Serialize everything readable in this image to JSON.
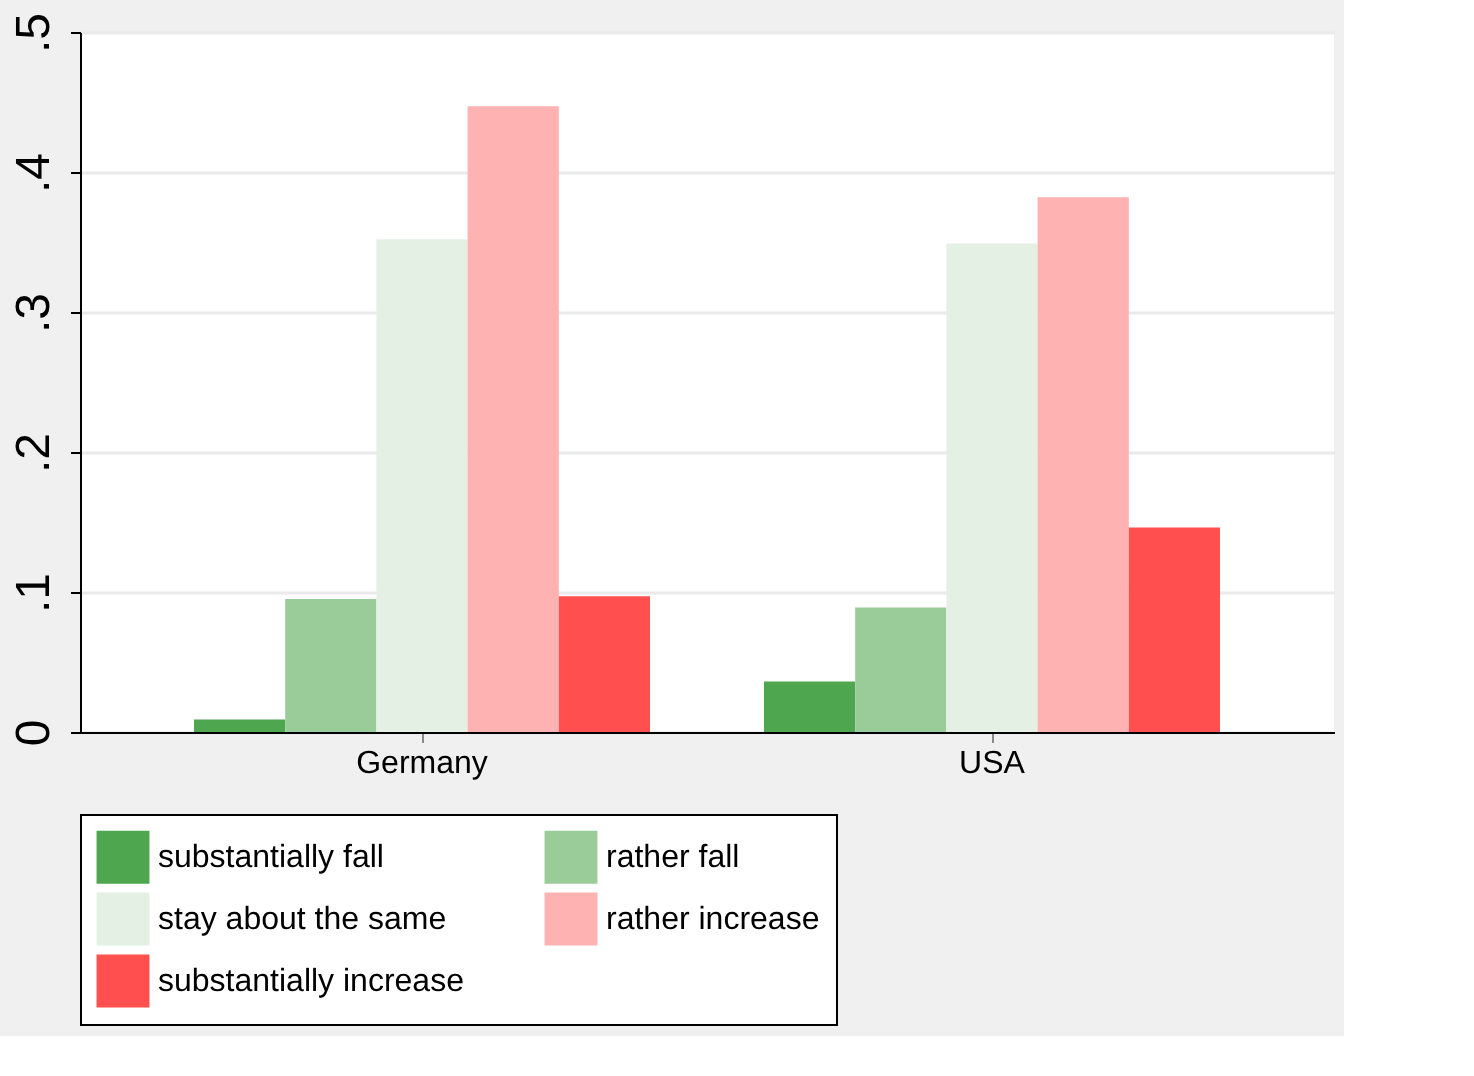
{
  "chart_data": {
    "type": "bar",
    "categories": [
      "Germany",
      "USA"
    ],
    "series": [
      {
        "name": "substantially fall",
        "color": "#4ea64e",
        "values": [
          0.009,
          0.036
        ]
      },
      {
        "name": "rather fall",
        "color": "#9acc99",
        "values": [
          0.095,
          0.089
        ]
      },
      {
        "name": "stay about the same",
        "color": "#e4f0e4",
        "values": [
          0.352,
          0.349
        ]
      },
      {
        "name": "rather increase",
        "color": "#feb2b2",
        "values": [
          0.447,
          0.382
        ]
      },
      {
        "name": "substantially increase",
        "color": "#ff4f4f",
        "values": [
          0.097,
          0.146
        ]
      }
    ],
    "ylim": [
      0,
      0.5
    ],
    "yticks": [
      {
        "value": 0,
        "label": "0"
      },
      {
        "value": 0.1,
        "label": ".1"
      },
      {
        "value": 0.2,
        "label": ".2"
      },
      {
        "value": 0.3,
        "label": ".3"
      },
      {
        "value": 0.4,
        "label": ".4"
      },
      {
        "value": 0.5,
        "label": ".5"
      }
    ],
    "grid": "y",
    "legend": "bottom"
  }
}
